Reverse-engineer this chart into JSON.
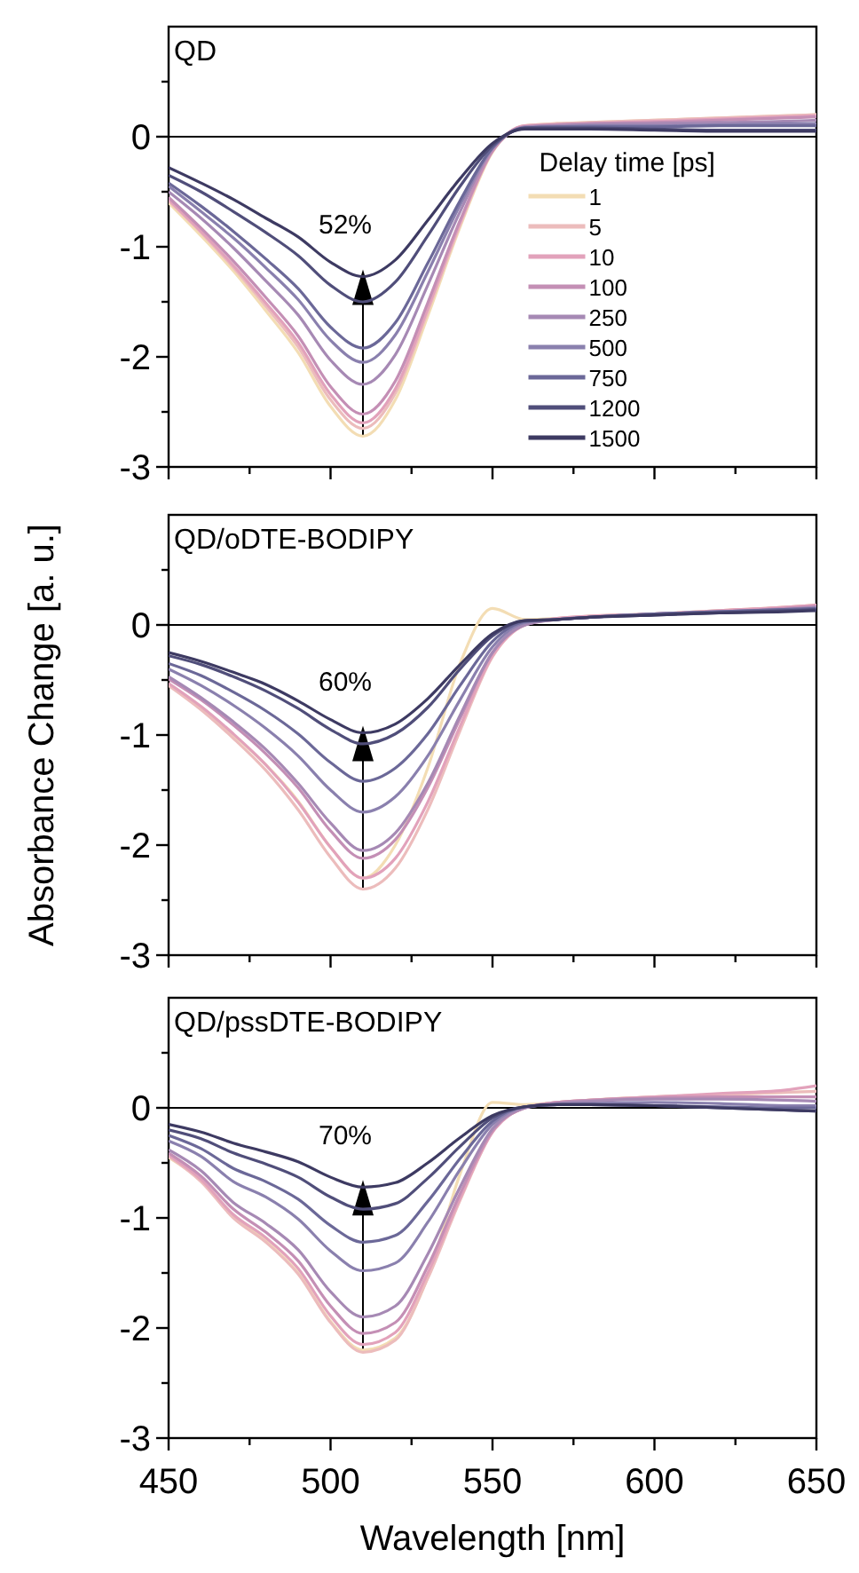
{
  "chart_data": [
    {
      "type": "line",
      "title": "QD",
      "legend_title": "Delay time [ps]",
      "legend": "right",
      "tick_labels": "y",
      "x": [
        450,
        460,
        470,
        480,
        490,
        500,
        510,
        520,
        530,
        540,
        550,
        560,
        570,
        580,
        600,
        620,
        640,
        650
      ],
      "xlim": [
        450,
        650
      ],
      "xticks": [
        450,
        {
          "value": 475,
          "label": null
        },
        500,
        {
          "value": 525,
          "label": null
        },
        550,
        {
          "value": 575,
          "label": null
        },
        600,
        {
          "value": 625,
          "label": null
        },
        650
      ],
      "ylim": [
        -3,
        1
      ],
      "yticks": [
        -3,
        {
          "value": -2.5,
          "label": null
        },
        -2,
        {
          "value": -1.5,
          "label": null
        },
        -1,
        {
          "value": -0.5,
          "label": null
        },
        0,
        {
          "value": 0.5,
          "label": null
        }
      ],
      "ref_lines": [
        {
          "axis": "y",
          "value": 0
        }
      ],
      "annotations": [
        "52%"
      ],
      "series": [
        {
          "name": "1",
          "color": "#f3ddb4",
          "values": [
            -0.6,
            -0.9,
            -1.22,
            -1.58,
            -1.96,
            -2.45,
            -2.72,
            -2.39,
            -1.63,
            -0.82,
            -0.14,
            0.1,
            0.12,
            0.13,
            0.15,
            0.17,
            0.19,
            0.2
          ]
        },
        {
          "name": "5",
          "color": "#ecbcbc",
          "values": [
            -0.58,
            -0.87,
            -1.19,
            -1.54,
            -1.91,
            -2.39,
            -2.65,
            -2.33,
            -1.59,
            -0.8,
            -0.13,
            0.1,
            0.12,
            0.13,
            0.15,
            0.17,
            0.19,
            0.2
          ]
        },
        {
          "name": "10",
          "color": "#e2a2bb",
          "values": [
            -0.57,
            -0.86,
            -1.17,
            -1.51,
            -1.87,
            -2.34,
            -2.6,
            -2.29,
            -1.56,
            -0.78,
            -0.13,
            0.1,
            0.11,
            0.12,
            0.14,
            0.16,
            0.18,
            0.19
          ]
        },
        {
          "name": "100",
          "color": "#c48fb5",
          "values": [
            -0.55,
            -0.83,
            -1.13,
            -1.46,
            -1.81,
            -2.27,
            -2.52,
            -2.22,
            -1.51,
            -0.76,
            -0.13,
            0.09,
            0.11,
            0.12,
            0.13,
            0.15,
            0.17,
            0.18
          ]
        },
        {
          "name": "250",
          "color": "#a689b4",
          "values": [
            -0.5,
            -0.74,
            -1.01,
            -1.31,
            -1.62,
            -2.03,
            -2.25,
            -1.98,
            -1.35,
            -0.68,
            -0.11,
            0.09,
            0.1,
            0.11,
            0.12,
            0.13,
            0.14,
            0.15
          ]
        },
        {
          "name": "500",
          "color": "#8a80ae",
          "values": [
            -0.45,
            -0.68,
            -0.92,
            -1.19,
            -1.48,
            -1.85,
            -2.05,
            -1.8,
            -1.23,
            -0.62,
            -0.1,
            0.08,
            0.09,
            0.1,
            0.1,
            0.11,
            0.12,
            0.12
          ]
        },
        {
          "name": "750",
          "color": "#6b6898",
          "values": [
            -0.42,
            -0.63,
            -0.86,
            -1.11,
            -1.38,
            -1.73,
            -1.92,
            -1.69,
            -1.15,
            -0.58,
            -0.1,
            0.08,
            0.09,
            0.09,
            0.09,
            0.1,
            0.1,
            0.1
          ]
        },
        {
          "name": "1200",
          "color": "#504e7a",
          "values": [
            -0.35,
            -0.5,
            -0.68,
            -0.87,
            -1.08,
            -1.35,
            -1.5,
            -1.32,
            -0.9,
            -0.45,
            -0.08,
            0.08,
            0.08,
            0.08,
            0.07,
            0.06,
            0.06,
            0.06
          ]
        },
        {
          "name": "1500",
          "color": "#3d3a62",
          "values": [
            -0.28,
            -0.42,
            -0.57,
            -0.74,
            -0.91,
            -1.14,
            -1.27,
            -1.12,
            -0.76,
            -0.38,
            -0.06,
            0.07,
            0.07,
            0.07,
            0.06,
            0.05,
            0.05,
            0.05
          ]
        }
      ]
    },
    {
      "type": "line",
      "title": "QD/oDTE-BODIPY",
      "ylabel": "Absorbance Change [a. u.]",
      "tick_labels": "y",
      "x": [
        450,
        460,
        470,
        480,
        490,
        500,
        510,
        520,
        530,
        540,
        550,
        560,
        570,
        580,
        600,
        620,
        640,
        650
      ],
      "xlim": [
        450,
        650
      ],
      "xticks": [
        450,
        {
          "value": 475,
          "label": null
        },
        500,
        {
          "value": 525,
          "label": null
        },
        550,
        {
          "value": 575,
          "label": null
        },
        600,
        {
          "value": 625,
          "label": null
        },
        650
      ],
      "ylim": [
        -3,
        1
      ],
      "yticks": [
        -3,
        {
          "value": -2.5,
          "label": null
        },
        -2,
        {
          "value": -1.5,
          "label": null
        },
        -1,
        {
          "value": -0.5,
          "label": null
        },
        0,
        {
          "value": 0.5,
          "label": null
        }
      ],
      "ref_lines": [
        {
          "axis": "y",
          "value": 0
        }
      ],
      "annotations": [
        "60%"
      ],
      "series": [
        {
          "color": "#f3ddb4",
          "values": [
            -0.55,
            -0.75,
            -1.0,
            -1.27,
            -1.6,
            -2.02,
            -2.3,
            -2.0,
            -1.3,
            -0.35,
            0.15,
            0.05,
            0.06,
            0.08,
            0.1,
            0.13,
            0.16,
            0.18
          ]
        },
        {
          "color": "#ecbcbc",
          "values": [
            -0.55,
            -0.77,
            -1.03,
            -1.32,
            -1.68,
            -2.11,
            -2.4,
            -2.21,
            -1.68,
            -0.96,
            -0.29,
            0.0,
            0.06,
            0.08,
            0.1,
            0.13,
            0.16,
            0.18
          ]
        },
        {
          "color": "#e2a2bb",
          "values": [
            -0.53,
            -0.74,
            -0.99,
            -1.27,
            -1.61,
            -2.02,
            -2.3,
            -2.12,
            -1.61,
            -0.92,
            -0.28,
            0.0,
            0.06,
            0.08,
            0.1,
            0.13,
            0.16,
            0.18
          ]
        },
        {
          "color": "#c48fb5",
          "values": [
            -0.49,
            -0.68,
            -0.91,
            -1.17,
            -1.48,
            -1.87,
            -2.12,
            -1.95,
            -1.48,
            -0.85,
            -0.25,
            0.0,
            0.05,
            0.07,
            0.1,
            0.12,
            0.15,
            0.17
          ]
        },
        {
          "color": "#a689b4",
          "values": [
            -0.47,
            -0.66,
            -0.88,
            -1.13,
            -1.44,
            -1.8,
            -2.05,
            -1.89,
            -1.44,
            -0.82,
            -0.25,
            0.0,
            0.05,
            0.07,
            0.1,
            0.12,
            0.14,
            0.16
          ]
        },
        {
          "color": "#8a80ae",
          "values": [
            -0.4,
            -0.55,
            -0.73,
            -0.94,
            -1.19,
            -1.5,
            -1.7,
            -1.56,
            -1.19,
            -0.68,
            -0.2,
            0.02,
            0.05,
            0.07,
            0.1,
            0.12,
            0.14,
            0.15
          ]
        },
        {
          "color": "#6b6898",
          "values": [
            -0.35,
            -0.46,
            -0.61,
            -0.78,
            -0.99,
            -1.25,
            -1.42,
            -1.3,
            -0.99,
            -0.55,
            -0.15,
            0.03,
            0.05,
            0.07,
            0.1,
            0.12,
            0.14,
            0.15
          ]
        },
        {
          "color": "#504e7a",
          "values": [
            -0.28,
            -0.36,
            -0.47,
            -0.6,
            -0.76,
            -0.95,
            -1.08,
            -0.99,
            -0.75,
            -0.4,
            -0.1,
            0.04,
            0.05,
            0.07,
            0.09,
            0.11,
            0.13,
            0.14
          ]
        },
        {
          "color": "#3d3a62",
          "values": [
            -0.25,
            -0.33,
            -0.43,
            -0.54,
            -0.69,
            -0.86,
            -0.98,
            -0.9,
            -0.67,
            -0.36,
            -0.08,
            0.04,
            0.05,
            0.07,
            0.09,
            0.11,
            0.12,
            0.13
          ]
        }
      ]
    },
    {
      "type": "line",
      "title": "QD/pssDTE-BODIPY",
      "xlabel": "Wavelength [nm]",
      "x": [
        450,
        460,
        470,
        480,
        490,
        500,
        510,
        520,
        530,
        540,
        550,
        560,
        570,
        580,
        600,
        620,
        640,
        650
      ],
      "xlim": [
        450,
        650
      ],
      "xticks": [
        450,
        {
          "value": 475,
          "label": null
        },
        500,
        {
          "value": 525,
          "label": null
        },
        550,
        {
          "value": 575,
          "label": null
        },
        600,
        {
          "value": 625,
          "label": null
        },
        650
      ],
      "ylim": [
        -3,
        1
      ],
      "yticks": [
        -3,
        {
          "value": -2.5,
          "label": null
        },
        -2,
        {
          "value": -1.5,
          "label": null
        },
        -1,
        {
          "value": -0.5,
          "label": null
        },
        0,
        {
          "value": 0.5,
          "label": null
        }
      ],
      "ref_lines": [
        {
          "axis": "y",
          "value": 0
        }
      ],
      "annotations": [
        "70%"
      ],
      "series": [
        {
          "color": "#f3ddb4",
          "values": [
            -0.45,
            -0.66,
            -0.99,
            -1.21,
            -1.5,
            -1.94,
            -2.2,
            -2.09,
            -1.54,
            -0.6,
            0.05,
            0.03,
            0.05,
            0.07,
            0.1,
            0.12,
            0.14,
            0.15
          ]
        },
        {
          "color": "#ecbcbc",
          "values": [
            -0.44,
            -0.67,
            -1.0,
            -1.22,
            -1.51,
            -1.95,
            -2.22,
            -2.11,
            -1.55,
            -0.84,
            -0.22,
            0.0,
            0.05,
            0.07,
            0.1,
            0.12,
            0.14,
            0.15
          ]
        },
        {
          "color": "#e2a2bb",
          "values": [
            -0.43,
            -0.65,
            -0.97,
            -1.18,
            -1.46,
            -1.89,
            -2.15,
            -2.04,
            -1.5,
            -0.82,
            -0.22,
            0.0,
            0.05,
            0.07,
            0.1,
            0.13,
            0.16,
            0.2
          ]
        },
        {
          "color": "#c48fb5",
          "values": [
            -0.41,
            -0.62,
            -0.92,
            -1.13,
            -1.39,
            -1.8,
            -2.05,
            -1.95,
            -1.44,
            -0.78,
            -0.21,
            0.0,
            0.05,
            0.07,
            0.09,
            0.1,
            0.1,
            0.1
          ]
        },
        {
          "color": "#a689b4",
          "values": [
            -0.38,
            -0.57,
            -0.86,
            -1.05,
            -1.29,
            -1.67,
            -1.9,
            -1.8,
            -1.33,
            -0.72,
            -0.19,
            0.0,
            0.04,
            0.06,
            0.08,
            0.08,
            0.07,
            0.06
          ]
        },
        {
          "color": "#8a80ae",
          "values": [
            -0.3,
            -0.44,
            -0.67,
            -0.81,
            -1.01,
            -1.3,
            -1.48,
            -1.41,
            -1.04,
            -0.56,
            -0.15,
            0.01,
            0.03,
            0.04,
            0.05,
            0.04,
            0.02,
            0.02
          ]
        },
        {
          "color": "#6b6898",
          "values": [
            -0.25,
            -0.37,
            -0.55,
            -0.67,
            -0.83,
            -1.07,
            -1.22,
            -1.16,
            -0.85,
            -0.46,
            -0.12,
            0.01,
            0.03,
            0.03,
            0.02,
            0.01,
            0.0,
            0.0
          ]
        },
        {
          "color": "#504e7a",
          "values": [
            -0.2,
            -0.28,
            -0.41,
            -0.51,
            -0.63,
            -0.81,
            -0.92,
            -0.87,
            -0.64,
            -0.35,
            -0.09,
            0.01,
            0.03,
            0.03,
            0.02,
            0.0,
            -0.02,
            -0.03
          ]
        },
        {
          "color": "#3d3a62",
          "values": [
            -0.15,
            -0.22,
            -0.32,
            -0.4,
            -0.49,
            -0.63,
            -0.72,
            -0.68,
            -0.5,
            -0.27,
            -0.07,
            0.01,
            0.03,
            0.03,
            0.02,
            0.0,
            -0.02,
            -0.03
          ]
        }
      ]
    }
  ]
}
